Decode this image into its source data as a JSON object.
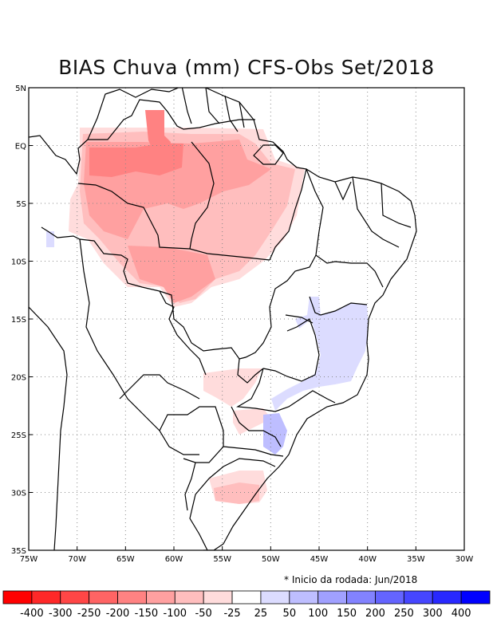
{
  "title": "BIAS Chuva (mm) CFS-Obs Set/2018",
  "note": "* Inicio da rodada: Jun/2018",
  "map": {
    "lon_range": [
      -75,
      -30
    ],
    "lat_range": [
      -35,
      5
    ],
    "x_ticks": [
      {
        "value": -75,
        "label": "75W"
      },
      {
        "value": -70,
        "label": "70W"
      },
      {
        "value": -65,
        "label": "65W"
      },
      {
        "value": -60,
        "label": "60W"
      },
      {
        "value": -55,
        "label": "55W"
      },
      {
        "value": -50,
        "label": "50W"
      },
      {
        "value": -45,
        "label": "45W"
      },
      {
        "value": -40,
        "label": "40W"
      },
      {
        "value": -35,
        "label": "35W"
      },
      {
        "value": -30,
        "label": "30W"
      }
    ],
    "y_ticks": [
      {
        "value": 5,
        "label": "5N"
      },
      {
        "value": 0,
        "label": "EQ"
      },
      {
        "value": -5,
        "label": "5S"
      },
      {
        "value": -10,
        "label": "10S"
      },
      {
        "value": -15,
        "label": "15S"
      },
      {
        "value": -20,
        "label": "20S"
      },
      {
        "value": -25,
        "label": "25S"
      },
      {
        "value": -30,
        "label": "30S"
      },
      {
        "value": -35,
        "label": "35S"
      }
    ],
    "grid": "dotted"
  },
  "legend": {
    "colors": [
      "#ff0000",
      "#ff2828",
      "#ff4646",
      "#ff6464",
      "#ff8282",
      "#ffa0a0",
      "#ffbebe",
      "#ffdcdc",
      "#ffffff",
      "#dcdcff",
      "#bebeff",
      "#a0a0ff",
      "#8282ff",
      "#6464ff",
      "#4646ff",
      "#2828ff",
      "#0000ff"
    ],
    "labels": [
      "-400",
      "-300",
      "-250",
      "-200",
      "-150",
      "-100",
      "-50",
      "-25",
      "25",
      "50",
      "100",
      "150",
      "200",
      "250",
      "300",
      "400"
    ]
  }
}
